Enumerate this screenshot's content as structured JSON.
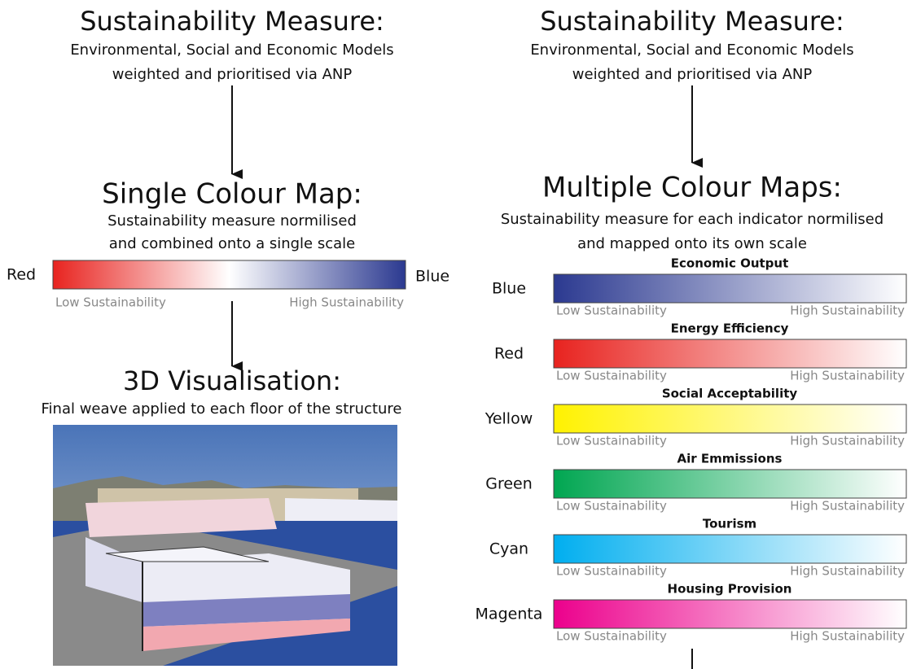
{
  "left": {
    "title": "Sustainability Measure:",
    "subtitle": [
      "Environmental, Social and Economic Models",
      "weighted and prioritised via ANP"
    ],
    "map_title": "Single Colour Map:",
    "map_description": [
      "Sustainability measure normilised",
      "and combined onto a single scale"
    ],
    "map": {
      "start_label": "Red",
      "end_label": "Blue",
      "start_color": "#e8231f",
      "end_color": "#2b3990",
      "low": "Low Sustainability",
      "high": "High Sustainability"
    },
    "vis_title": "3D Visualisation:",
    "vis_description": "Final weave applied to each floor of the structure"
  },
  "right": {
    "title": "Sustainability Measure:",
    "subtitle": [
      "Environmental, Social and Economic Models",
      "weighted and prioritised via ANP"
    ],
    "map_title": "Multiple Colour Maps:",
    "map_description": [
      "Sustainability measure for each indicator normilised",
      "and mapped onto its own scale"
    ],
    "low": "Low Sustainability",
    "high": "High Sustainability",
    "scales": [
      {
        "name": "Economic Output",
        "colour": "Blue",
        "color": "#2b3990"
      },
      {
        "name": "Energy Efficiency",
        "colour": "Red",
        "color": "#e8231f"
      },
      {
        "name": "Social Acceptability",
        "colour": "Yellow",
        "color": "#fff200"
      },
      {
        "name": "Air Emmissions",
        "colour": "Green",
        "color": "#00a651"
      },
      {
        "name": "Tourism",
        "colour": "Cyan",
        "color": "#00aeef"
      },
      {
        "name": "Housing Provision",
        "colour": "Magenta",
        "color": "#ec008c"
      }
    ]
  }
}
